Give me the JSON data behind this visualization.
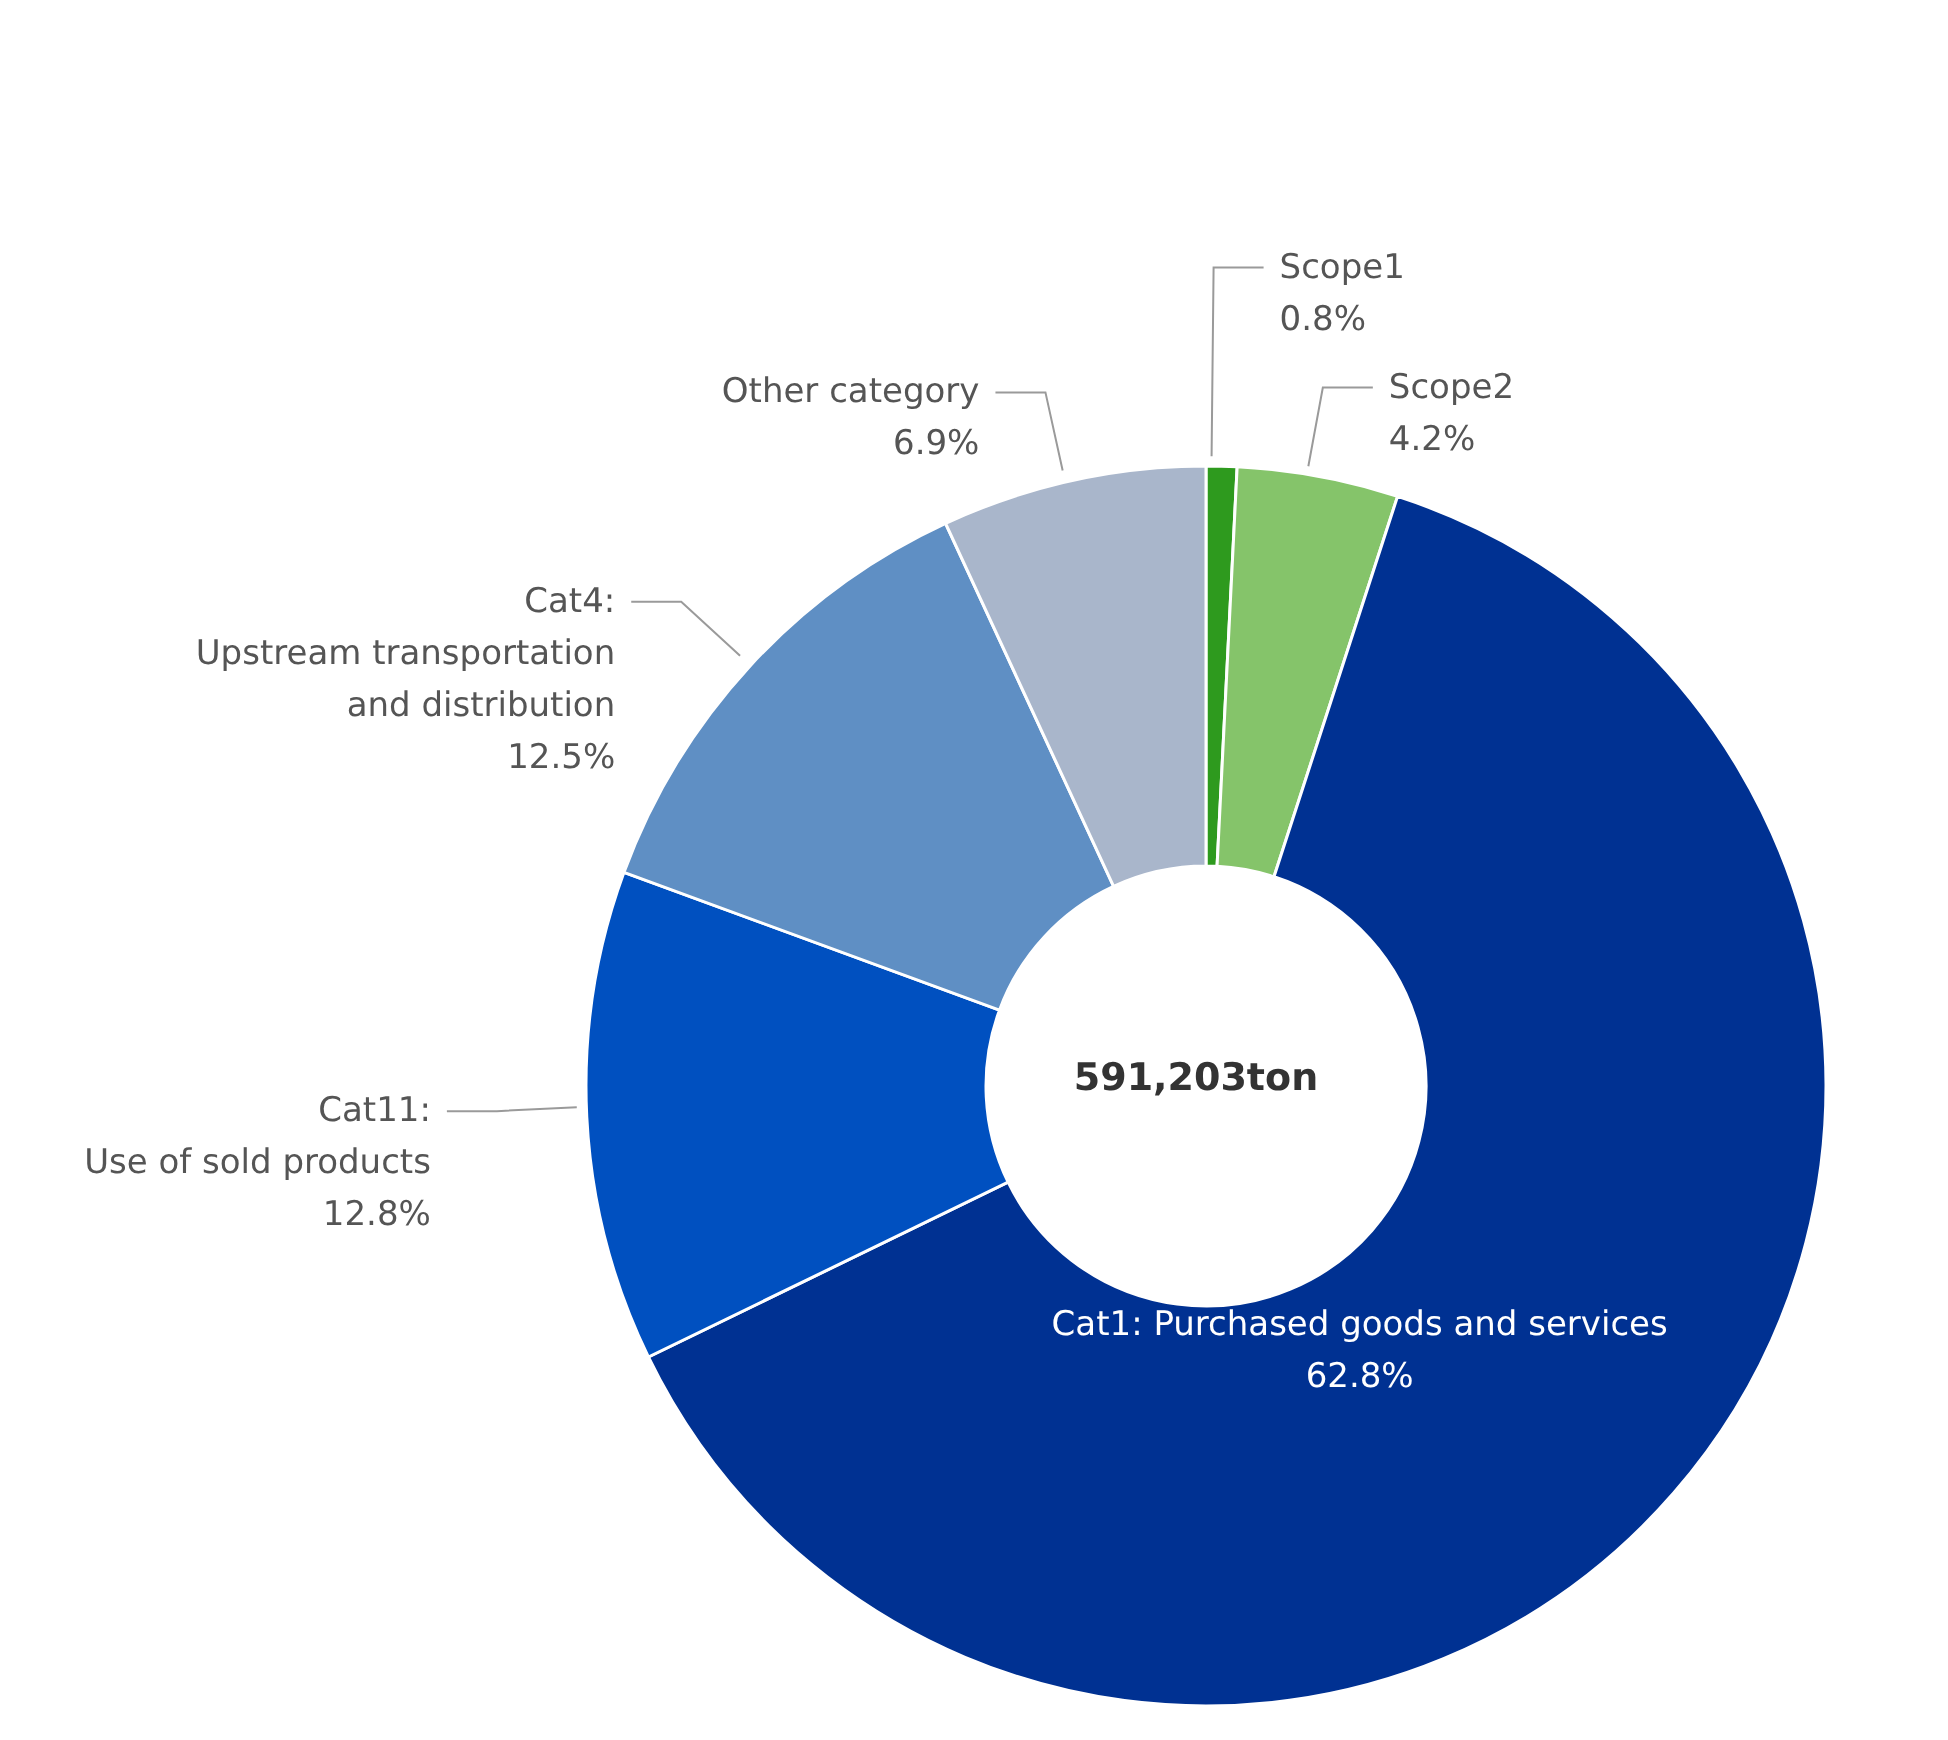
{
  "chart_data": {
    "type": "donut",
    "categories": [
      "Scope1",
      "Scope2",
      "Cat1: Purchased goods and services",
      "Cat11:\nUse of sold products",
      "Cat4:\nUpstream transportation\nand distribution",
      "Other category"
    ],
    "values": [
      0.8,
      4.2,
      62.8,
      12.8,
      12.5,
      6.9
    ],
    "value_labels": [
      "0.8%",
      "4.2%",
      "62.8%",
      "12.8%",
      "12.5%",
      "6.9%"
    ],
    "colors": [
      "#2e9a1e",
      "#85c46a",
      "#003192",
      "#0050c0",
      "#5f8fc4",
      "#a9b6cb"
    ],
    "annotations": [
      "591,203ton"
    ],
    "legend": false
  }
}
